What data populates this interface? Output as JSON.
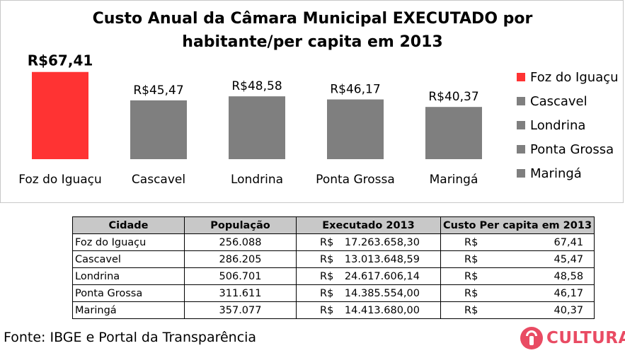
{
  "chart_data": {
    "type": "bar",
    "title": "Custo Anual da Câmara Municipal EXECUTADO por habitante/per capita em 2013",
    "title_lines": [
      "Custo Anual da Câmara Municipal EXECUTADO por",
      "habitante/per capita em 2013"
    ],
    "categories": [
      "Foz do Iguaçu",
      "Cascavel",
      "Londrina",
      "Ponta Grossa",
      "Maringá"
    ],
    "values": [
      67.41,
      45.47,
      48.58,
      46.17,
      40.37
    ],
    "data_labels": [
      "R$67,41",
      "R$45,47",
      "R$48,58",
      "R$46,17",
      "R$40,37"
    ],
    "colors": [
      "#ff3333",
      "#7f7f7f",
      "#7f7f7f",
      "#7f7f7f",
      "#7f7f7f"
    ],
    "highlight_index": 0,
    "ylim": [
      0,
      70
    ],
    "grid": false,
    "legend_position": "right",
    "xlabel": "",
    "ylabel": ""
  },
  "table": {
    "headers": [
      "Cidade",
      "População",
      "Executado 2013",
      "Custo Per capita em 2013"
    ],
    "currency": "R$",
    "rows": [
      {
        "city": "Foz do Iguaçu",
        "population": "256.088",
        "executed": "17.263.658,30",
        "per_capita": "67,41"
      },
      {
        "city": "Cascavel",
        "population": "286.205",
        "executed": "13.013.648,59",
        "per_capita": "45,47"
      },
      {
        "city": "Londrina",
        "population": "506.701",
        "executed": "24.617.606,14",
        "per_capita": "48,58"
      },
      {
        "city": "Ponta Grossa",
        "population": "311.611",
        "executed": "14.385.554,00",
        "per_capita": "46,17"
      },
      {
        "city": "Maringá",
        "population": "357.077",
        "executed": "14.413.680,00",
        "per_capita": "40,37"
      }
    ]
  },
  "footer": {
    "source": "Fonte: IBGE e Portal da Transparência",
    "logo_text": "CULTURA",
    "logo_color": "#e94b63"
  }
}
